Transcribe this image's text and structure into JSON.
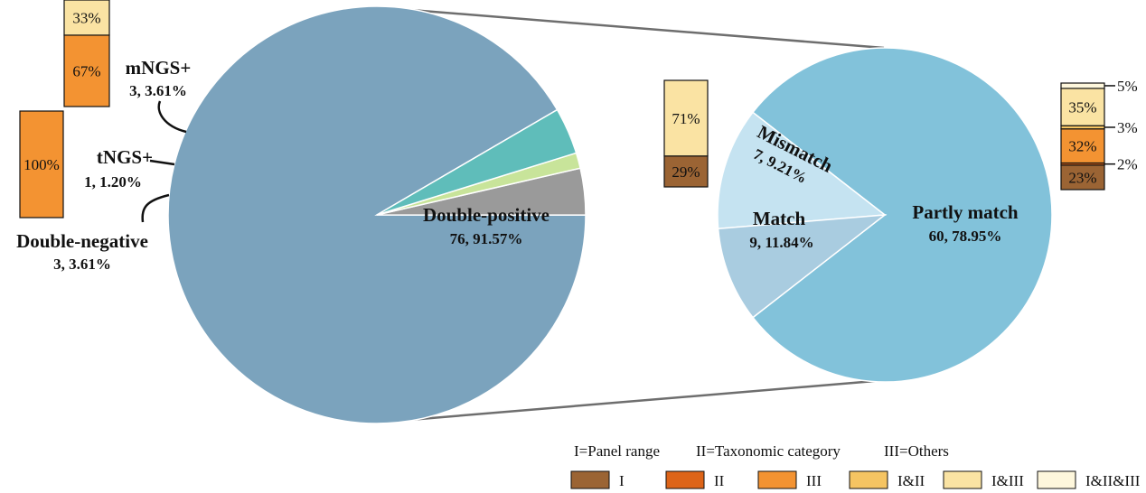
{
  "chart_data": [
    {
      "type": "pie",
      "slices": [
        {
          "name": "Double-positive",
          "count": 76,
          "value": 91.57,
          "color": "#7BA3BD",
          "label": "Double-positive",
          "sublabel": "76, 91.57%"
        },
        {
          "name": "Double-negative",
          "count": 3,
          "value": 3.61,
          "color": "#9A9A9A",
          "label": "Double-negative",
          "sublabel": "3, 3.61%"
        },
        {
          "name": "tNGS+",
          "count": 1,
          "value": 1.2,
          "color": "#C8E49A",
          "label": "tNGS+",
          "sublabel": "1, 1.20%"
        },
        {
          "name": "mNGS+",
          "count": 3,
          "value": 3.61,
          "color": "#5FBDBA",
          "label": "mNGS+",
          "sublabel": "3, 3.61%"
        }
      ]
    },
    {
      "type": "pie",
      "slices": [
        {
          "name": "Partly match",
          "count": 60,
          "value": 78.95,
          "color": "#82C2DA",
          "label": "Partly match",
          "sublabel": "60, 78.95%"
        },
        {
          "name": "Match",
          "count": 9,
          "value": 11.84,
          "color": "#C5E3F1",
          "label": "Match",
          "sublabel": "9, 11.84%"
        },
        {
          "name": "Mismatch",
          "count": 7,
          "value": 9.21,
          "color": "#A9CCE0",
          "label": "Mismatch",
          "sublabel": "7, 9.21%"
        }
      ]
    },
    {
      "type": "bar",
      "stacked": true,
      "bars": [
        {
          "name": "mNGS+",
          "segments": [
            {
              "category": "III",
              "value": 67,
              "label": "67%"
            },
            {
              "category": "I&III",
              "value": 33,
              "label": "33%"
            }
          ]
        },
        {
          "name": "tNGS+",
          "segments": [
            {
              "category": "III",
              "value": 100,
              "label": "100%"
            }
          ]
        },
        {
          "name": "Mismatch",
          "segments": [
            {
              "category": "I",
              "value": 29,
              "label": "29%"
            },
            {
              "category": "I&III",
              "value": 71,
              "label": "71%"
            }
          ]
        },
        {
          "name": "Partly match",
          "segments": [
            {
              "category": "I",
              "value": 23,
              "label": "23%"
            },
            {
              "category": "II",
              "value": 2,
              "label": "2%"
            },
            {
              "category": "III",
              "value": 32,
              "label": "32%"
            },
            {
              "category": "I&II",
              "value": 3,
              "label": "3%"
            },
            {
              "category": "I&III",
              "value": 35,
              "label": "35%"
            },
            {
              "category": "I&II&III",
              "value": 5,
              "label": "5%"
            }
          ]
        }
      ]
    }
  ],
  "legend": {
    "definitions": [
      "I=Panel range",
      "II=Taxonomic category",
      "III=Others"
    ],
    "items": [
      {
        "label": "I",
        "color": "#9B6434"
      },
      {
        "label": "II",
        "color": "#DD6418"
      },
      {
        "label": "III",
        "color": "#F39332"
      },
      {
        "label": "I&II",
        "color": "#F5C462"
      },
      {
        "label": "I&III",
        "color": "#FAE3A3"
      },
      {
        "label": "I&II&III",
        "color": "#FEF7DC"
      }
    ]
  }
}
